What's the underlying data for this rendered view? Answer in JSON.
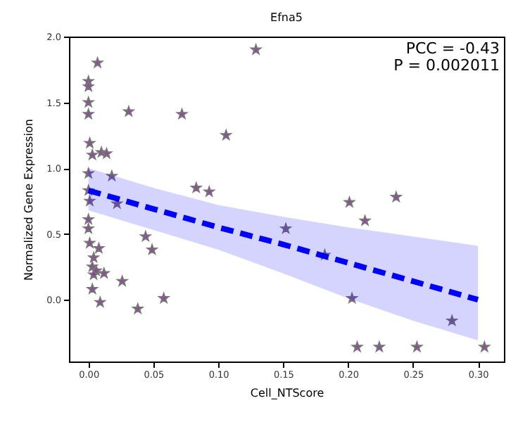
{
  "chart_data": {
    "type": "scatter",
    "title": "Efna5",
    "xlabel": "Cell_NTScore",
    "ylabel": "Normalized Gene Expression",
    "xlim": [
      -0.015,
      0.32
    ],
    "ylim": [
      -0.47,
      2.0
    ],
    "xticks": [
      {
        "value": 0,
        "label": "0.00"
      },
      {
        "value": 0.05,
        "label": "0.05"
      },
      {
        "value": 0.1,
        "label": "0.10"
      },
      {
        "value": 0.15,
        "label": "0.15"
      },
      {
        "value": 0.2,
        "label": "0.20"
      },
      {
        "value": 0.25,
        "label": "0.25"
      },
      {
        "value": 0.3,
        "label": "0.30"
      }
    ],
    "yticks": [
      {
        "value": 0,
        "label": "0.0"
      },
      {
        "value": 0.5,
        "label": "0.5"
      },
      {
        "value": 1,
        "label": "1.0"
      },
      {
        "value": 1.5,
        "label": "1.5"
      },
      {
        "value": 2,
        "label": "2.0"
      }
    ],
    "grid": false,
    "annotations": [
      "PCC = -0.43",
      "P = 0.002011"
    ],
    "series": [
      {
        "marker": "star",
        "color": "#7f3f8c",
        "x": [
          0.007,
          0,
          0,
          0,
          0,
          0.031,
          0.072,
          0.129,
          0.106,
          0.001,
          0.003,
          0.01,
          0.014,
          0,
          0.018,
          0.083,
          0.093,
          0,
          0.001,
          0.022,
          0,
          0,
          0.001,
          0.008,
          0.004,
          0.003,
          0.006,
          0.012,
          0.004,
          0.003,
          0.009,
          0.026,
          0.038,
          0.044,
          0.049,
          0.058,
          0.201,
          0.237,
          0.213,
          0.152,
          0.182,
          0.203,
          0.28,
          0.207,
          0.224,
          0.253,
          0.305
        ],
        "values": [
          1.8,
          1.66,
          1.62,
          1.5,
          1.41,
          1.43,
          1.41,
          1.9,
          1.25,
          1.19,
          1.1,
          1.12,
          1.11,
          0.96,
          0.94,
          0.85,
          0.82,
          0.83,
          0.75,
          0.73,
          0.61,
          0.54,
          0.43,
          0.39,
          0.32,
          0.25,
          0.22,
          0.2,
          0.19,
          0.08,
          -0.02,
          0.14,
          -0.07,
          0.48,
          0.38,
          0.01,
          0.74,
          0.78,
          0.6,
          0.54,
          0.34,
          0.01,
          -0.16,
          -0.36,
          -0.36,
          -0.36,
          -0.36
        ]
      },
      {
        "type": "line",
        "color": "#0000ff",
        "line_style": "dashed",
        "x": [
          0,
          0.05,
          0.1,
          0.15,
          0.2,
          0.25,
          0.3
        ],
        "values": [
          0.83,
          0.69,
          0.55,
          0.42,
          0.28,
          0.14,
          0.0
        ],
        "lower": [
          0.68,
          0.53,
          0.38,
          0.2,
          0.01,
          -0.16,
          -0.31
        ],
        "upper": [
          1.0,
          0.85,
          0.72,
          0.63,
          0.55,
          0.48,
          0.41
        ]
      }
    ]
  }
}
